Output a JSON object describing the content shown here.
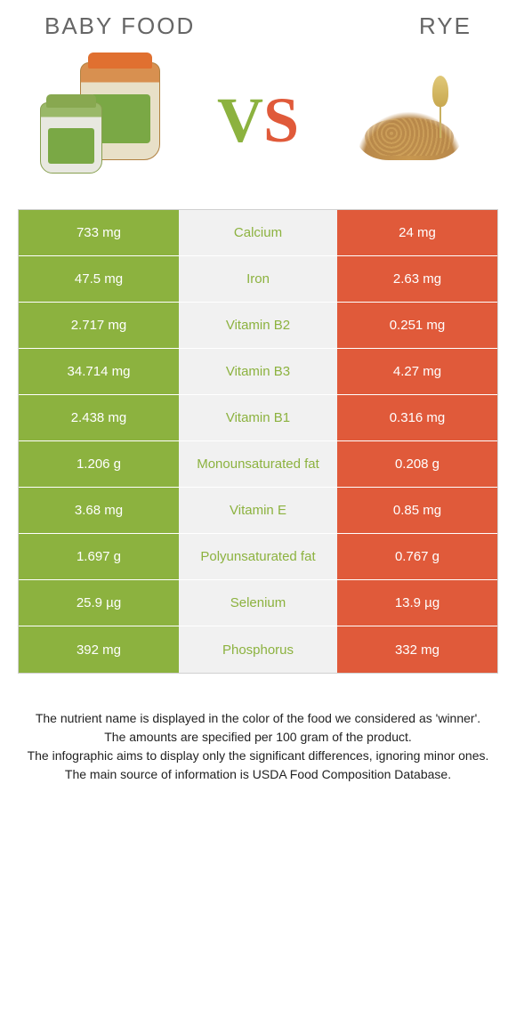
{
  "title_left": "Baby food",
  "title_right": "Rye",
  "vs_v": "V",
  "vs_s": "S",
  "colors": {
    "left": "#8cb23f",
    "right": "#e05a3a",
    "mid_bg": "#f1f1f1",
    "mid_text_left": "#8cb23f",
    "mid_text_right": "#e05a3a"
  },
  "rows": [
    {
      "left": "733 mg",
      "label": "Calcium",
      "right": "24 mg",
      "winner": "left"
    },
    {
      "left": "47.5 mg",
      "label": "Iron",
      "right": "2.63 mg",
      "winner": "left"
    },
    {
      "left": "2.717 mg",
      "label": "Vitamin B2",
      "right": "0.251 mg",
      "winner": "left"
    },
    {
      "left": "34.714 mg",
      "label": "Vitamin B3",
      "right": "4.27 mg",
      "winner": "left"
    },
    {
      "left": "2.438 mg",
      "label": "Vitamin B1",
      "right": "0.316 mg",
      "winner": "left"
    },
    {
      "left": "1.206 g",
      "label": "Monounsaturated fat",
      "right": "0.208 g",
      "winner": "left"
    },
    {
      "left": "3.68 mg",
      "label": "Vitamin E",
      "right": "0.85 mg",
      "winner": "left"
    },
    {
      "left": "1.697 g",
      "label": "Polyunsaturated fat",
      "right": "0.767 g",
      "winner": "left"
    },
    {
      "left": "25.9 µg",
      "label": "Selenium",
      "right": "13.9 µg",
      "winner": "left"
    },
    {
      "left": "392 mg",
      "label": "Phosphorus",
      "right": "332 mg",
      "winner": "left"
    }
  ],
  "footer": [
    "The nutrient name is displayed in the color of the food we considered as 'winner'.",
    "The amounts are specified per 100 gram of the product.",
    "The infographic aims to display only the significant differences, ignoring minor ones.",
    "The main source of information is USDA Food Composition Database."
  ]
}
